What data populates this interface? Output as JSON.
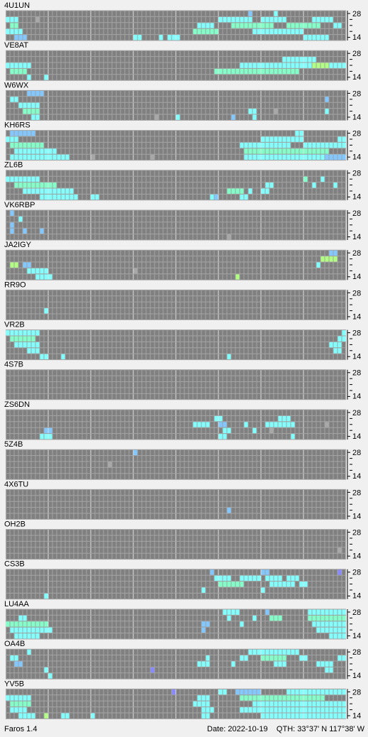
{
  "band_labels": [
    "28",
    "14"
  ],
  "levels": [
    "#80ffff",
    "#80ffc8",
    "#b0ff80",
    "#80c8ff",
    "#8888ff",
    "#a8a8a8"
  ],
  "stations": [
    {
      "name": "4U1UN",
      "runs": [
        [
          1,
          0,
          3,
          1
        ],
        [
          2,
          1,
          2,
          2
        ],
        [
          3,
          0,
          4,
          1
        ],
        [
          4,
          2,
          3,
          4
        ],
        [
          1,
          7,
          1,
          6
        ],
        [
          4,
          30,
          2,
          1
        ],
        [
          4,
          36,
          1,
          1
        ],
        [
          3,
          44,
          6,
          2
        ],
        [
          4,
          38,
          3,
          1
        ],
        [
          2,
          45,
          4,
          1
        ],
        [
          1,
          50,
          8,
          1
        ],
        [
          0,
          57,
          1,
          4
        ],
        [
          2,
          53,
          10,
          2
        ],
        [
          1,
          60,
          6,
          1
        ],
        [
          3,
          58,
          12,
          1
        ],
        [
          2,
          66,
          8,
          2
        ],
        [
          4,
          70,
          6,
          1
        ],
        [
          1,
          72,
          5,
          1
        ],
        [
          2,
          77,
          2,
          1
        ],
        [
          0,
          63,
          1,
          1
        ]
      ]
    },
    {
      "name": "VE8AT",
      "runs": [
        [
          2,
          0,
          6,
          1
        ],
        [
          3,
          1,
          4,
          2
        ],
        [
          4,
          5,
          1,
          1
        ],
        [
          4,
          9,
          1,
          1
        ],
        [
          2,
          55,
          25,
          1
        ],
        [
          3,
          49,
          20,
          2
        ],
        [
          1,
          65,
          8,
          1
        ],
        [
          2,
          72,
          4,
          3
        ]
      ]
    },
    {
      "name": "W6WX",
      "runs": [
        [
          0,
          5,
          4,
          4
        ],
        [
          1,
          1,
          2,
          1
        ],
        [
          2,
          3,
          5,
          1
        ],
        [
          3,
          4,
          4,
          2
        ],
        [
          4,
          6,
          2,
          1
        ],
        [
          4,
          35,
          1,
          6
        ],
        [
          4,
          40,
          1,
          1
        ],
        [
          4,
          53,
          1,
          4
        ],
        [
          3,
          57,
          2,
          1
        ],
        [
          4,
          58,
          1,
          1
        ],
        [
          3,
          63,
          1,
          6
        ],
        [
          1,
          75,
          1,
          4
        ],
        [
          3,
          75,
          1,
          1
        ]
      ]
    },
    {
      "name": "KH6RS",
      "runs": [
        [
          0,
          1,
          6,
          4
        ],
        [
          1,
          0,
          3,
          1
        ],
        [
          2,
          1,
          8,
          2
        ],
        [
          3,
          2,
          10,
          1
        ],
        [
          4,
          1,
          14,
          1
        ],
        [
          4,
          20,
          1,
          6
        ],
        [
          4,
          34,
          1,
          6
        ],
        [
          2,
          55,
          12,
          1
        ],
        [
          3,
          56,
          20,
          2
        ],
        [
          4,
          56,
          24,
          1
        ],
        [
          1,
          60,
          10,
          1
        ],
        [
          0,
          68,
          2,
          1
        ],
        [
          2,
          70,
          10,
          1
        ],
        [
          1,
          78,
          2,
          1
        ],
        [
          4,
          75,
          5,
          4
        ]
      ]
    },
    {
      "name": "ZL6B",
      "runs": [
        [
          1,
          0,
          8,
          1
        ],
        [
          2,
          2,
          10,
          2
        ],
        [
          3,
          4,
          12,
          1
        ],
        [
          4,
          8,
          9,
          1
        ],
        [
          4,
          20,
          2,
          1
        ],
        [
          4,
          48,
          2,
          1
        ],
        [
          3,
          52,
          4,
          2
        ],
        [
          4,
          55,
          2,
          1
        ],
        [
          3,
          57,
          1,
          1
        ],
        [
          3,
          60,
          2,
          1
        ],
        [
          2,
          61,
          2,
          1
        ],
        [
          1,
          70,
          1,
          2
        ],
        [
          2,
          72,
          1,
          1
        ],
        [
          1,
          74,
          1,
          1
        ],
        [
          2,
          77,
          1,
          1
        ],
        [
          4,
          49,
          1,
          4
        ]
      ]
    },
    {
      "name": "VK6RBP",
      "runs": [
        [
          0,
          1,
          1,
          4
        ],
        [
          1,
          3,
          1,
          1
        ],
        [
          2,
          1,
          1,
          4
        ],
        [
          3,
          1,
          1,
          4
        ],
        [
          3,
          4,
          1,
          4
        ],
        [
          3,
          8,
          1,
          4
        ],
        [
          4,
          52,
          1,
          6
        ]
      ]
    },
    {
      "name": "JA2IGY",
      "runs": [
        [
          2,
          1,
          2,
          3
        ],
        [
          2,
          4,
          2,
          4
        ],
        [
          3,
          5,
          5,
          1
        ],
        [
          4,
          7,
          4,
          1
        ],
        [
          3,
          30,
          1,
          6
        ],
        [
          4,
          54,
          1,
          3
        ],
        [
          0,
          76,
          2,
          4
        ],
        [
          1,
          74,
          4,
          3
        ],
        [
          2,
          73,
          1,
          1
        ]
      ]
    },
    {
      "name": "RR9O",
      "runs": [
        [
          3,
          9,
          1,
          1
        ]
      ]
    },
    {
      "name": "VR2B",
      "runs": [
        [
          0,
          0,
          8,
          1
        ],
        [
          1,
          1,
          6,
          2
        ],
        [
          2,
          2,
          6,
          1
        ],
        [
          3,
          5,
          3,
          1
        ],
        [
          4,
          8,
          2,
          1
        ],
        [
          4,
          13,
          1,
          1
        ],
        [
          4,
          52,
          1,
          1
        ],
        [
          0,
          79,
          1,
          1
        ],
        [
          1,
          78,
          2,
          1
        ],
        [
          2,
          76,
          3,
          1
        ],
        [
          3,
          77,
          2,
          1
        ]
      ]
    },
    {
      "name": "4S7B",
      "runs": []
    },
    {
      "name": "ZS6DN",
      "runs": [
        [
          3,
          9,
          2,
          4
        ],
        [
          4,
          8,
          3,
          1
        ],
        [
          2,
          44,
          4,
          1
        ],
        [
          1,
          49,
          2,
          1
        ],
        [
          2,
          50,
          2,
          4
        ],
        [
          3,
          51,
          2,
          1
        ],
        [
          4,
          50,
          2,
          1
        ],
        [
          2,
          56,
          1,
          1
        ],
        [
          3,
          58,
          1,
          1
        ],
        [
          2,
          61,
          7,
          1
        ],
        [
          1,
          64,
          3,
          1
        ],
        [
          3,
          62,
          1,
          6
        ],
        [
          4,
          67,
          1,
          1
        ],
        [
          2,
          75,
          1,
          6
        ]
      ]
    },
    {
      "name": "5Z4B",
      "runs": [
        [
          0,
          30,
          1,
          4
        ],
        [
          2,
          24,
          1,
          6
        ]
      ]
    },
    {
      "name": "4X6TU",
      "runs": [
        [
          3,
          52,
          1,
          4
        ]
      ]
    },
    {
      "name": "OH2B",
      "runs": [
        [
          3,
          78,
          1,
          6
        ]
      ]
    },
    {
      "name": "CS3B",
      "runs": [
        [
          0,
          48,
          1,
          4
        ],
        [
          1,
          49,
          4,
          1
        ],
        [
          2,
          50,
          6,
          2
        ],
        [
          1,
          55,
          5,
          1
        ],
        [
          0,
          60,
          2,
          4
        ],
        [
          1,
          61,
          4,
          1
        ],
        [
          2,
          62,
          6,
          1
        ],
        [
          3,
          60,
          1,
          1
        ],
        [
          1,
          66,
          3,
          1
        ],
        [
          2,
          69,
          2,
          1
        ],
        [
          0,
          78,
          1,
          5
        ],
        [
          3,
          46,
          1,
          1
        ],
        [
          4,
          9,
          1,
          1
        ]
      ]
    },
    {
      "name": "LU4AA",
      "runs": [
        [
          2,
          0,
          10,
          2
        ],
        [
          3,
          1,
          10,
          1
        ],
        [
          4,
          2,
          6,
          1
        ],
        [
          1,
          3,
          2,
          1
        ],
        [
          0,
          51,
          4,
          1
        ],
        [
          2,
          46,
          2,
          4
        ],
        [
          3,
          46,
          1,
          4
        ],
        [
          1,
          52,
          1,
          1
        ],
        [
          2,
          55,
          1,
          1
        ],
        [
          1,
          58,
          1,
          1
        ],
        [
          0,
          61,
          1,
          4
        ],
        [
          1,
          62,
          3,
          2
        ],
        [
          0,
          71,
          9,
          1
        ],
        [
          1,
          71,
          9,
          2
        ],
        [
          2,
          72,
          8,
          1
        ],
        [
          3,
          73,
          7,
          1
        ],
        [
          4,
          76,
          4,
          1
        ]
      ]
    },
    {
      "name": "OA4B",
      "runs": [
        [
          0,
          5,
          1,
          1
        ],
        [
          1,
          1,
          2,
          1
        ],
        [
          2,
          2,
          2,
          4
        ],
        [
          3,
          9,
          1,
          1
        ],
        [
          4,
          10,
          1,
          1
        ],
        [
          3,
          34,
          1,
          5
        ],
        [
          2,
          45,
          3,
          1
        ],
        [
          1,
          47,
          1,
          1
        ],
        [
          2,
          53,
          1,
          1
        ],
        [
          1,
          55,
          2,
          1
        ],
        [
          0,
          57,
          12,
          1
        ],
        [
          1,
          60,
          6,
          2
        ],
        [
          2,
          63,
          3,
          1
        ],
        [
          1,
          69,
          2,
          1
        ],
        [
          2,
          73,
          4,
          1
        ],
        [
          3,
          75,
          2,
          1
        ],
        [
          1,
          78,
          2,
          1
        ]
      ]
    },
    {
      "name": "YV5B",
      "runs": [
        [
          0,
          39,
          1,
          5
        ],
        [
          0,
          50,
          2,
          1
        ],
        [
          1,
          45,
          3,
          1
        ],
        [
          2,
          44,
          4,
          1
        ],
        [
          3,
          46,
          3,
          1
        ],
        [
          4,
          46,
          2,
          1
        ],
        [
          0,
          54,
          6,
          4
        ],
        [
          1,
          55,
          20,
          2
        ],
        [
          2,
          58,
          22,
          1
        ],
        [
          3,
          55,
          25,
          1
        ],
        [
          4,
          60,
          20,
          1
        ],
        [
          0,
          66,
          14,
          1
        ],
        [
          2,
          1,
          5,
          2
        ],
        [
          3,
          1,
          4,
          1
        ],
        [
          4,
          3,
          4,
          1
        ],
        [
          4,
          9,
          1,
          3
        ],
        [
          4,
          13,
          2,
          1
        ],
        [
          4,
          20,
          1,
          1
        ],
        [
          1,
          0,
          6,
          1
        ]
      ]
    }
  ],
  "footer": {
    "app": "Faros 1.4",
    "date": "Date: 2022-10-19",
    "qth": "QTH: 33°37' N  117°38' W"
  }
}
